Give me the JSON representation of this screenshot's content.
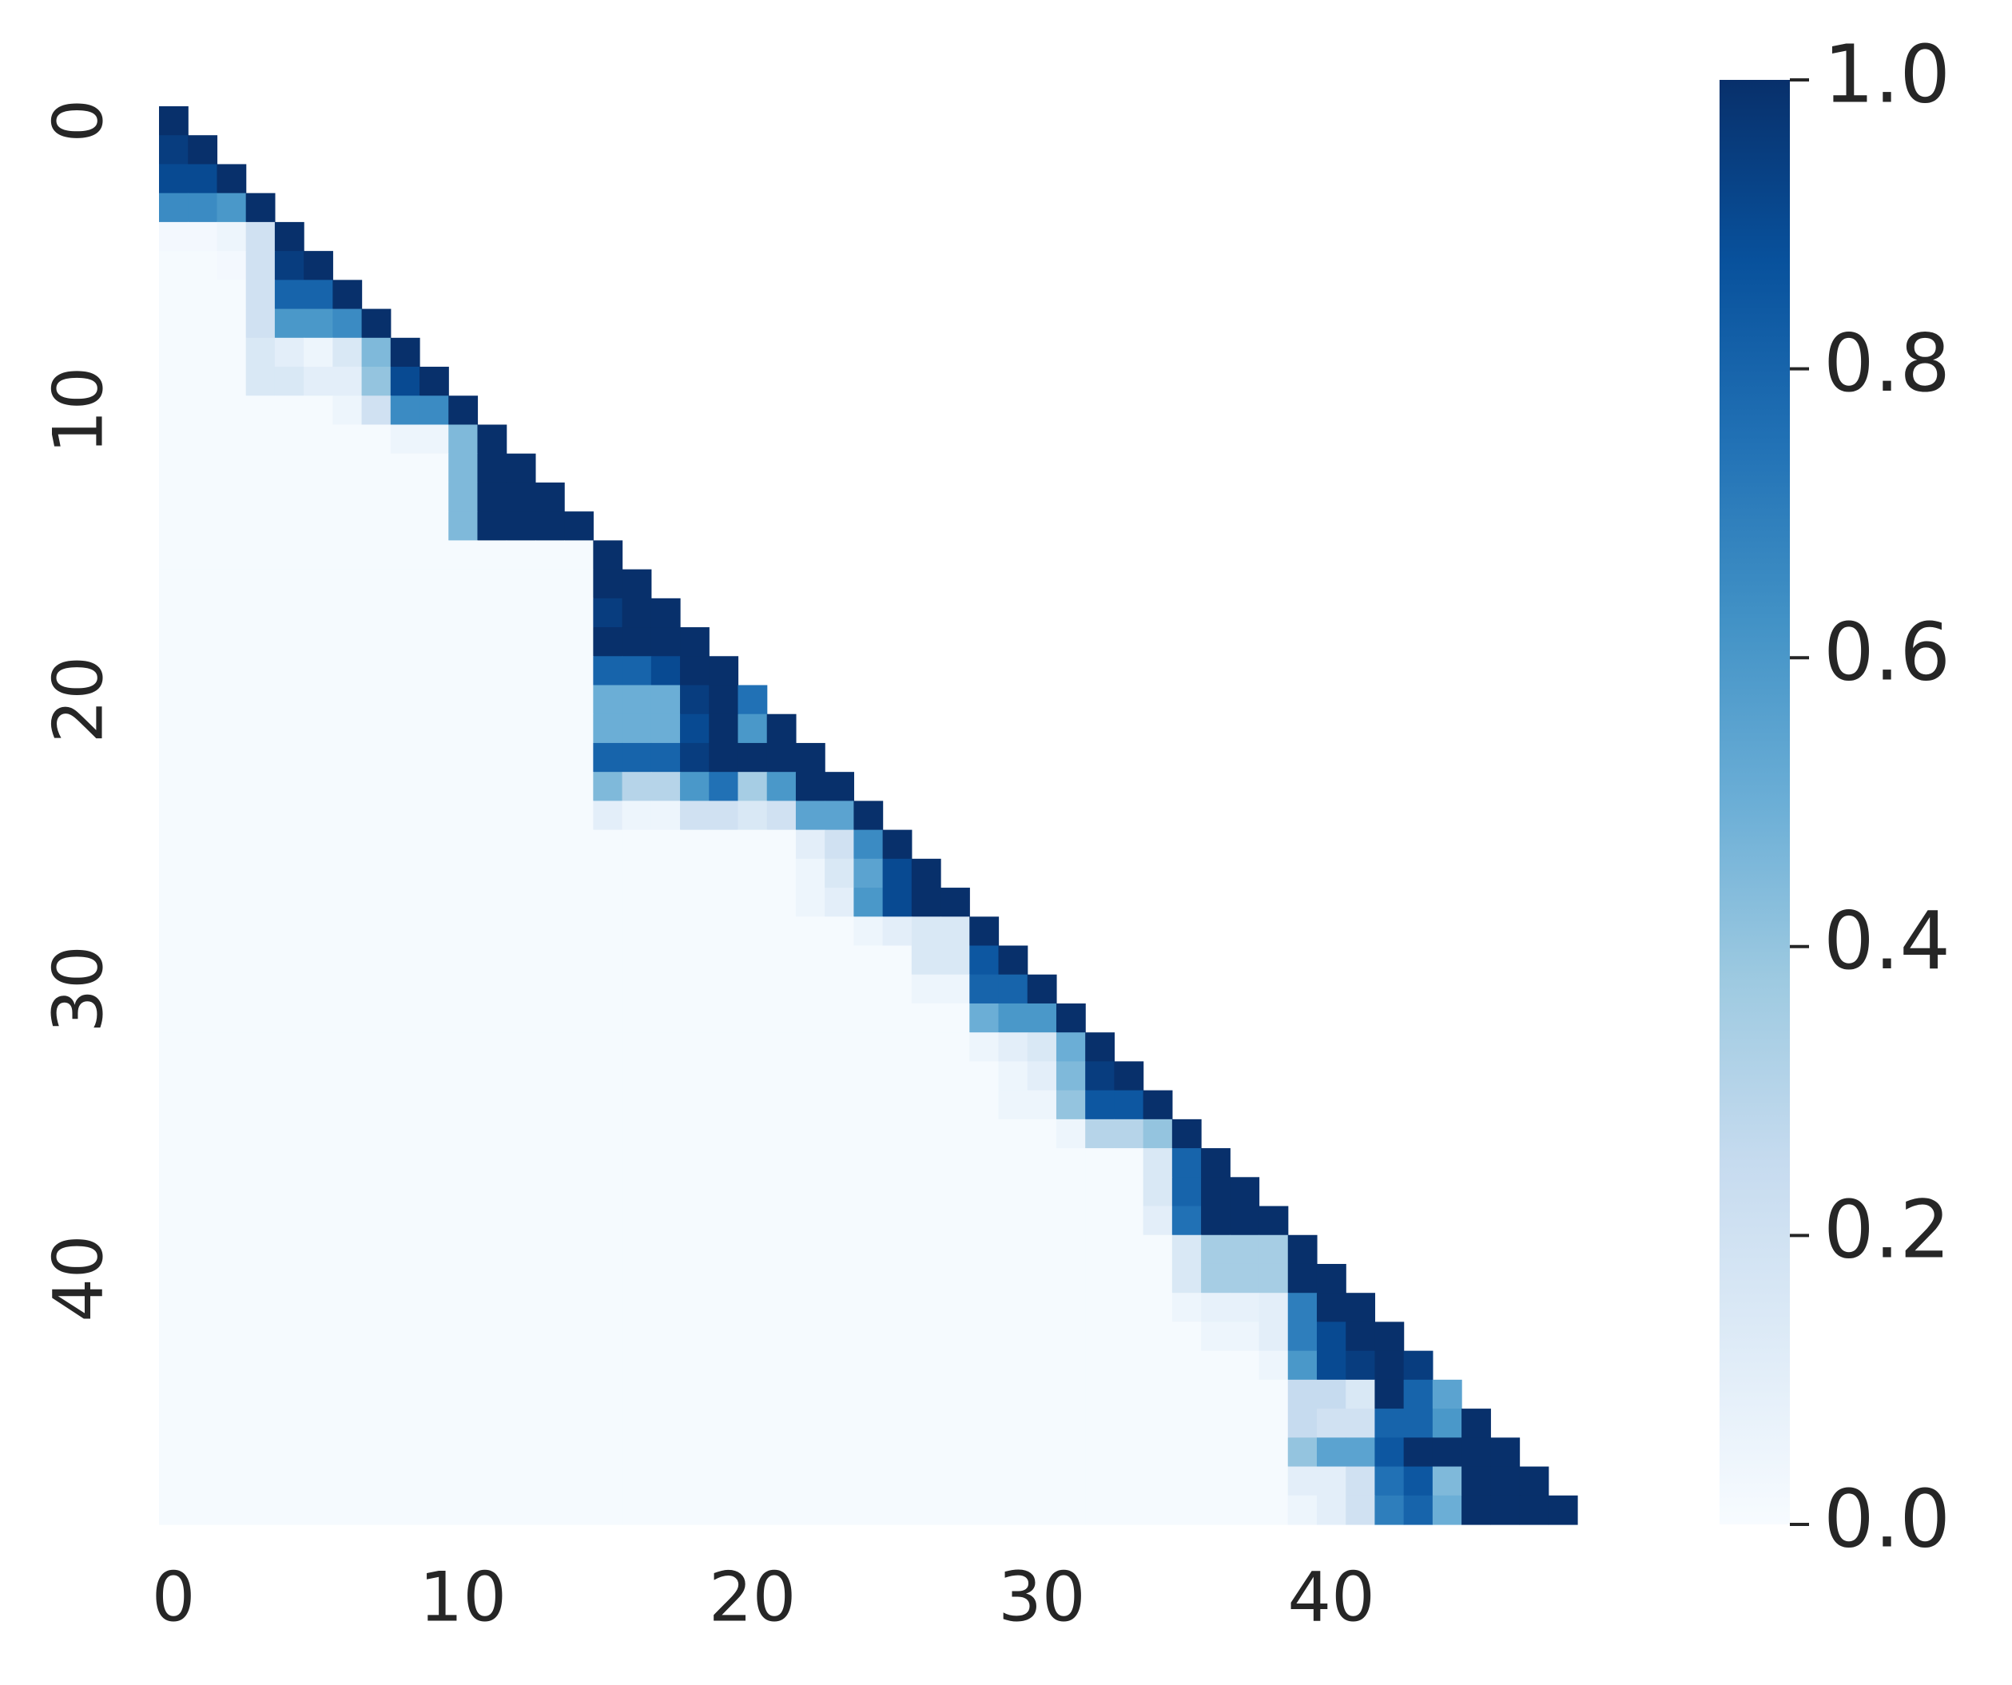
{
  "chart_data": {
    "type": "heatmap",
    "colormap": "Blues",
    "mask": "upper",
    "xticks": [
      0,
      10,
      20,
      30,
      40
    ],
    "yticks": [
      0,
      10,
      20,
      30,
      40
    ],
    "clim": [
      0,
      1
    ],
    "cticks": [
      {
        "value": 0,
        "label": "0.0"
      },
      {
        "value": 0.2,
        "label": "0.2"
      },
      {
        "value": 0.4,
        "label": "0.4"
      },
      {
        "value": 0.6,
        "label": "0.6"
      },
      {
        "value": 0.8,
        "label": "0.8"
      },
      {
        "value": 1,
        "label": "1.0"
      }
    ],
    "values": [
      [
        1
      ],
      [
        0.95,
        1
      ],
      [
        0.9,
        0.9,
        1
      ],
      [
        0.65,
        0.65,
        0.6,
        1
      ],
      [
        0.02,
        0.02,
        0.05,
        0.2,
        1
      ],
      [
        0.01,
        0.01,
        0.02,
        0.2,
        0.95,
        1
      ],
      [
        0.01,
        0.01,
        0.01,
        0.2,
        0.8,
        0.8,
        1
      ],
      [
        0.01,
        0.01,
        0.01,
        0.2,
        0.6,
        0.6,
        0.65,
        1
      ],
      [
        0.01,
        0.01,
        0.01,
        0.15,
        0.1,
        0.05,
        0.15,
        0.45,
        1
      ],
      [
        0.01,
        0.01,
        0.01,
        0.15,
        0.15,
        0.1,
        0.1,
        0.4,
        0.9,
        1
      ],
      [
        0.01,
        0.01,
        0.01,
        0.01,
        0.01,
        0.01,
        0.05,
        0.2,
        0.65,
        0.65,
        1
      ],
      [
        0.01,
        0.01,
        0.01,
        0.01,
        0.01,
        0.01,
        0.01,
        0.01,
        0.05,
        0.05,
        0.45,
        1
      ],
      [
        0.01,
        0.01,
        0.01,
        0.01,
        0.01,
        0.01,
        0.01,
        0.01,
        0.01,
        0.01,
        0.45,
        1,
        1
      ],
      [
        0.01,
        0.01,
        0.01,
        0.01,
        0.01,
        0.01,
        0.01,
        0.01,
        0.01,
        0.01,
        0.45,
        1,
        1,
        1
      ],
      [
        0.01,
        0.01,
        0.01,
        0.01,
        0.01,
        0.01,
        0.01,
        0.01,
        0.01,
        0.01,
        0.45,
        1,
        1,
        1,
        1
      ],
      [
        0.01,
        0.01,
        0.01,
        0.01,
        0.01,
        0.01,
        0.01,
        0.01,
        0.01,
        0.01,
        0.01,
        0.01,
        0.01,
        0.01,
        0.01,
        1
      ],
      [
        0.01,
        0.01,
        0.01,
        0.01,
        0.01,
        0.01,
        0.01,
        0.01,
        0.01,
        0.01,
        0.01,
        0.01,
        0.01,
        0.01,
        0.01,
        1,
        1
      ],
      [
        0.01,
        0.01,
        0.01,
        0.01,
        0.01,
        0.01,
        0.01,
        0.01,
        0.01,
        0.01,
        0.01,
        0.01,
        0.01,
        0.01,
        0.01,
        0.95,
        1,
        1
      ],
      [
        0.01,
        0.01,
        0.01,
        0.01,
        0.01,
        0.01,
        0.01,
        0.01,
        0.01,
        0.01,
        0.01,
        0.01,
        0.01,
        0.01,
        0.01,
        1,
        1,
        1,
        1
      ],
      [
        0.01,
        0.01,
        0.01,
        0.01,
        0.01,
        0.01,
        0.01,
        0.01,
        0.01,
        0.01,
        0.01,
        0.01,
        0.01,
        0.01,
        0.01,
        0.8,
        0.8,
        0.9,
        1,
        1
      ],
      [
        0.01,
        0.01,
        0.01,
        0.01,
        0.01,
        0.01,
        0.01,
        0.01,
        0.01,
        0.01,
        0.01,
        0.01,
        0.01,
        0.01,
        0.01,
        0.5,
        0.5,
        0.5,
        0.95,
        1,
        0.75
      ],
      [
        0.01,
        0.01,
        0.01,
        0.01,
        0.01,
        0.01,
        0.01,
        0.01,
        0.01,
        0.01,
        0.01,
        0.01,
        0.01,
        0.01,
        0.01,
        0.5,
        0.5,
        0.5,
        0.9,
        1,
        0.6,
        1
      ],
      [
        0.01,
        0.01,
        0.01,
        0.01,
        0.01,
        0.01,
        0.01,
        0.01,
        0.01,
        0.01,
        0.01,
        0.01,
        0.01,
        0.01,
        0.01,
        0.8,
        0.8,
        0.8,
        0.95,
        1,
        1,
        1,
        1
      ],
      [
        0.01,
        0.01,
        0.01,
        0.01,
        0.01,
        0.01,
        0.01,
        0.01,
        0.01,
        0.01,
        0.01,
        0.01,
        0.01,
        0.01,
        0.01,
        0.45,
        0.3,
        0.3,
        0.6,
        0.75,
        0.35,
        0.6,
        1,
        1
      ],
      [
        0.01,
        0.01,
        0.01,
        0.01,
        0.01,
        0.01,
        0.01,
        0.01,
        0.01,
        0.01,
        0.01,
        0.01,
        0.01,
        0.01,
        0.01,
        0.1,
        0.05,
        0.05,
        0.2,
        0.2,
        0.15,
        0.2,
        0.55,
        0.55,
        1
      ],
      [
        0.01,
        0.01,
        0.01,
        0.01,
        0.01,
        0.01,
        0.01,
        0.01,
        0.01,
        0.01,
        0.01,
        0.01,
        0.01,
        0.01,
        0.01,
        0.01,
        0.01,
        0.01,
        0.01,
        0.01,
        0.01,
        0.01,
        0.1,
        0.2,
        0.65,
        1
      ],
      [
        0.01,
        0.01,
        0.01,
        0.01,
        0.01,
        0.01,
        0.01,
        0.01,
        0.01,
        0.01,
        0.01,
        0.01,
        0.01,
        0.01,
        0.01,
        0.01,
        0.01,
        0.01,
        0.01,
        0.01,
        0.01,
        0.01,
        0.05,
        0.15,
        0.55,
        0.9,
        1
      ],
      [
        0.01,
        0.01,
        0.01,
        0.01,
        0.01,
        0.01,
        0.01,
        0.01,
        0.01,
        0.01,
        0.01,
        0.01,
        0.01,
        0.01,
        0.01,
        0.01,
        0.01,
        0.01,
        0.01,
        0.01,
        0.01,
        0.01,
        0.05,
        0.1,
        0.6,
        0.9,
        1,
        1
      ],
      [
        0.01,
        0.01,
        0.01,
        0.01,
        0.01,
        0.01,
        0.01,
        0.01,
        0.01,
        0.01,
        0.01,
        0.01,
        0.01,
        0.01,
        0.01,
        0.01,
        0.01,
        0.01,
        0.01,
        0.01,
        0.01,
        0.01,
        0.01,
        0.01,
        0.05,
        0.1,
        0.15,
        0.15,
        1
      ],
      [
        0.01,
        0.01,
        0.01,
        0.01,
        0.01,
        0.01,
        0.01,
        0.01,
        0.01,
        0.01,
        0.01,
        0.01,
        0.01,
        0.01,
        0.01,
        0.01,
        0.01,
        0.01,
        0.01,
        0.01,
        0.01,
        0.01,
        0.01,
        0.01,
        0.01,
        0.01,
        0.15,
        0.15,
        0.85,
        1
      ],
      [
        0.01,
        0.01,
        0.01,
        0.01,
        0.01,
        0.01,
        0.01,
        0.01,
        0.01,
        0.01,
        0.01,
        0.01,
        0.01,
        0.01,
        0.01,
        0.01,
        0.01,
        0.01,
        0.01,
        0.01,
        0.01,
        0.01,
        0.01,
        0.01,
        0.01,
        0.01,
        0.05,
        0.05,
        0.8,
        0.8,
        1
      ],
      [
        0.01,
        0.01,
        0.01,
        0.01,
        0.01,
        0.01,
        0.01,
        0.01,
        0.01,
        0.01,
        0.01,
        0.01,
        0.01,
        0.01,
        0.01,
        0.01,
        0.01,
        0.01,
        0.01,
        0.01,
        0.01,
        0.01,
        0.01,
        0.01,
        0.01,
        0.01,
        0.01,
        0.01,
        0.5,
        0.6,
        0.6,
        1
      ],
      [
        0.01,
        0.01,
        0.01,
        0.01,
        0.01,
        0.01,
        0.01,
        0.01,
        0.01,
        0.01,
        0.01,
        0.01,
        0.01,
        0.01,
        0.01,
        0.01,
        0.01,
        0.01,
        0.01,
        0.01,
        0.01,
        0.01,
        0.01,
        0.01,
        0.01,
        0.01,
        0.01,
        0.01,
        0.05,
        0.1,
        0.15,
        0.5,
        1
      ],
      [
        0.01,
        0.01,
        0.01,
        0.01,
        0.01,
        0.01,
        0.01,
        0.01,
        0.01,
        0.01,
        0.01,
        0.01,
        0.01,
        0.01,
        0.01,
        0.01,
        0.01,
        0.01,
        0.01,
        0.01,
        0.01,
        0.01,
        0.01,
        0.01,
        0.01,
        0.01,
        0.01,
        0.01,
        0.01,
        0.05,
        0.1,
        0.45,
        0.95,
        1
      ],
      [
        0.01,
        0.01,
        0.01,
        0.01,
        0.01,
        0.01,
        0.01,
        0.01,
        0.01,
        0.01,
        0.01,
        0.01,
        0.01,
        0.01,
        0.01,
        0.01,
        0.01,
        0.01,
        0.01,
        0.01,
        0.01,
        0.01,
        0.01,
        0.01,
        0.01,
        0.01,
        0.01,
        0.01,
        0.01,
        0.05,
        0.05,
        0.4,
        0.85,
        0.85,
        1
      ],
      [
        0.01,
        0.01,
        0.01,
        0.01,
        0.01,
        0.01,
        0.01,
        0.01,
        0.01,
        0.01,
        0.01,
        0.01,
        0.01,
        0.01,
        0.01,
        0.01,
        0.01,
        0.01,
        0.01,
        0.01,
        0.01,
        0.01,
        0.01,
        0.01,
        0.01,
        0.01,
        0.01,
        0.01,
        0.01,
        0.01,
        0.01,
        0.05,
        0.3,
        0.3,
        0.4,
        1
      ],
      [
        0.01,
        0.01,
        0.01,
        0.01,
        0.01,
        0.01,
        0.01,
        0.01,
        0.01,
        0.01,
        0.01,
        0.01,
        0.01,
        0.01,
        0.01,
        0.01,
        0.01,
        0.01,
        0.01,
        0.01,
        0.01,
        0.01,
        0.01,
        0.01,
        0.01,
        0.01,
        0.01,
        0.01,
        0.01,
        0.01,
        0.01,
        0.01,
        0.01,
        0.01,
        0.15,
        0.8,
        1
      ],
      [
        0.01,
        0.01,
        0.01,
        0.01,
        0.01,
        0.01,
        0.01,
        0.01,
        0.01,
        0.01,
        0.01,
        0.01,
        0.01,
        0.01,
        0.01,
        0.01,
        0.01,
        0.01,
        0.01,
        0.01,
        0.01,
        0.01,
        0.01,
        0.01,
        0.01,
        0.01,
        0.01,
        0.01,
        0.01,
        0.01,
        0.01,
        0.01,
        0.01,
        0.01,
        0.15,
        0.8,
        1,
        1
      ],
      [
        0.01,
        0.01,
        0.01,
        0.01,
        0.01,
        0.01,
        0.01,
        0.01,
        0.01,
        0.01,
        0.01,
        0.01,
        0.01,
        0.01,
        0.01,
        0.01,
        0.01,
        0.01,
        0.01,
        0.01,
        0.01,
        0.01,
        0.01,
        0.01,
        0.01,
        0.01,
        0.01,
        0.01,
        0.01,
        0.01,
        0.01,
        0.01,
        0.01,
        0.01,
        0.1,
        0.75,
        1,
        1,
        1
      ],
      [
        0.01,
        0.01,
        0.01,
        0.01,
        0.01,
        0.01,
        0.01,
        0.01,
        0.01,
        0.01,
        0.01,
        0.01,
        0.01,
        0.01,
        0.01,
        0.01,
        0.01,
        0.01,
        0.01,
        0.01,
        0.01,
        0.01,
        0.01,
        0.01,
        0.01,
        0.01,
        0.01,
        0.01,
        0.01,
        0.01,
        0.01,
        0.01,
        0.01,
        0.01,
        0.01,
        0.15,
        0.35,
        0.35,
        0.35,
        1
      ],
      [
        0.01,
        0.01,
        0.01,
        0.01,
        0.01,
        0.01,
        0.01,
        0.01,
        0.01,
        0.01,
        0.01,
        0.01,
        0.01,
        0.01,
        0.01,
        0.01,
        0.01,
        0.01,
        0.01,
        0.01,
        0.01,
        0.01,
        0.01,
        0.01,
        0.01,
        0.01,
        0.01,
        0.01,
        0.01,
        0.01,
        0.01,
        0.01,
        0.01,
        0.01,
        0.01,
        0.15,
        0.35,
        0.35,
        0.35,
        1,
        1
      ],
      [
        0.01,
        0.01,
        0.01,
        0.01,
        0.01,
        0.01,
        0.01,
        0.01,
        0.01,
        0.01,
        0.01,
        0.01,
        0.01,
        0.01,
        0.01,
        0.01,
        0.01,
        0.01,
        0.01,
        0.01,
        0.01,
        0.01,
        0.01,
        0.01,
        0.01,
        0.01,
        0.01,
        0.01,
        0.01,
        0.01,
        0.01,
        0.01,
        0.01,
        0.01,
        0.01,
        0.05,
        0.08,
        0.08,
        0.1,
        0.7,
        1,
        1
      ],
      [
        0.01,
        0.01,
        0.01,
        0.01,
        0.01,
        0.01,
        0.01,
        0.01,
        0.01,
        0.01,
        0.01,
        0.01,
        0.01,
        0.01,
        0.01,
        0.01,
        0.01,
        0.01,
        0.01,
        0.01,
        0.01,
        0.01,
        0.01,
        0.01,
        0.01,
        0.01,
        0.01,
        0.01,
        0.01,
        0.01,
        0.01,
        0.01,
        0.01,
        0.01,
        0.01,
        0.01,
        0.05,
        0.05,
        0.1,
        0.7,
        0.9,
        1,
        1
      ],
      [
        0.01,
        0.01,
        0.01,
        0.01,
        0.01,
        0.01,
        0.01,
        0.01,
        0.01,
        0.01,
        0.01,
        0.01,
        0.01,
        0.01,
        0.01,
        0.01,
        0.01,
        0.01,
        0.01,
        0.01,
        0.01,
        0.01,
        0.01,
        0.01,
        0.01,
        0.01,
        0.01,
        0.01,
        0.01,
        0.01,
        0.01,
        0.01,
        0.01,
        0.01,
        0.01,
        0.01,
        0.01,
        0.01,
        0.05,
        0.6,
        0.9,
        0.95,
        1,
        0.95
      ],
      [
        0.01,
        0.01,
        0.01,
        0.01,
        0.01,
        0.01,
        0.01,
        0.01,
        0.01,
        0.01,
        0.01,
        0.01,
        0.01,
        0.01,
        0.01,
        0.01,
        0.01,
        0.01,
        0.01,
        0.01,
        0.01,
        0.01,
        0.01,
        0.01,
        0.01,
        0.01,
        0.01,
        0.01,
        0.01,
        0.01,
        0.01,
        0.01,
        0.01,
        0.01,
        0.01,
        0.01,
        0.01,
        0.01,
        0.01,
        0.25,
        0.25,
        0.15,
        1,
        0.8,
        0.55
      ],
      [
        0.01,
        0.01,
        0.01,
        0.01,
        0.01,
        0.01,
        0.01,
        0.01,
        0.01,
        0.01,
        0.01,
        0.01,
        0.01,
        0.01,
        0.01,
        0.01,
        0.01,
        0.01,
        0.01,
        0.01,
        0.01,
        0.01,
        0.01,
        0.01,
        0.01,
        0.01,
        0.01,
        0.01,
        0.01,
        0.01,
        0.01,
        0.01,
        0.01,
        0.01,
        0.01,
        0.01,
        0.01,
        0.01,
        0.01,
        0.25,
        0.2,
        0.2,
        0.8,
        0.8,
        0.6,
        1
      ],
      [
        0.01,
        0.01,
        0.01,
        0.01,
        0.01,
        0.01,
        0.01,
        0.01,
        0.01,
        0.01,
        0.01,
        0.01,
        0.01,
        0.01,
        0.01,
        0.01,
        0.01,
        0.01,
        0.01,
        0.01,
        0.01,
        0.01,
        0.01,
        0.01,
        0.01,
        0.01,
        0.01,
        0.01,
        0.01,
        0.01,
        0.01,
        0.01,
        0.01,
        0.01,
        0.01,
        0.01,
        0.01,
        0.01,
        0.01,
        0.4,
        0.55,
        0.55,
        0.85,
        1,
        1,
        1,
        1
      ],
      [
        0.01,
        0.01,
        0.01,
        0.01,
        0.01,
        0.01,
        0.01,
        0.01,
        0.01,
        0.01,
        0.01,
        0.01,
        0.01,
        0.01,
        0.01,
        0.01,
        0.01,
        0.01,
        0.01,
        0.01,
        0.01,
        0.01,
        0.01,
        0.01,
        0.01,
        0.01,
        0.01,
        0.01,
        0.01,
        0.01,
        0.01,
        0.01,
        0.01,
        0.01,
        0.01,
        0.01,
        0.01,
        0.01,
        0.01,
        0.1,
        0.1,
        0.2,
        0.75,
        0.85,
        0.45,
        1,
        1,
        1
      ],
      [
        0.01,
        0.01,
        0.01,
        0.01,
        0.01,
        0.01,
        0.01,
        0.01,
        0.01,
        0.01,
        0.01,
        0.01,
        0.01,
        0.01,
        0.01,
        0.01,
        0.01,
        0.01,
        0.01,
        0.01,
        0.01,
        0.01,
        0.01,
        0.01,
        0.01,
        0.01,
        0.01,
        0.01,
        0.01,
        0.01,
        0.01,
        0.01,
        0.01,
        0.01,
        0.01,
        0.01,
        0.01,
        0.01,
        0.01,
        0.05,
        0.1,
        0.2,
        0.7,
        0.8,
        0.5,
        1,
        1,
        1,
        1
      ]
    ]
  }
}
